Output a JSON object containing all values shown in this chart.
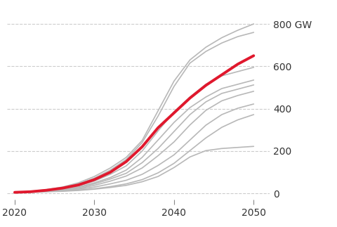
{
  "years": [
    2020,
    2022,
    2024,
    2026,
    2028,
    2030,
    2032,
    2034,
    2036,
    2038,
    2040,
    2042,
    2044,
    2046,
    2048,
    2050
  ],
  "reference": [
    5,
    8,
    15,
    25,
    40,
    65,
    100,
    150,
    220,
    310,
    380,
    450,
    510,
    560,
    610,
    650
  ],
  "gray_lines": [
    [
      5,
      10,
      18,
      30,
      50,
      80,
      120,
      170,
      250,
      390,
      530,
      630,
      690,
      735,
      770,
      800
    ],
    [
      5,
      9,
      16,
      27,
      45,
      72,
      110,
      160,
      240,
      365,
      505,
      615,
      670,
      710,
      740,
      760
    ],
    [
      5,
      8,
      14,
      22,
      35,
      58,
      90,
      130,
      200,
      295,
      385,
      455,
      515,
      555,
      575,
      595
    ],
    [
      5,
      8,
      13,
      20,
      30,
      50,
      75,
      110,
      170,
      252,
      335,
      405,
      455,
      495,
      515,
      535
    ],
    [
      5,
      7,
      12,
      18,
      28,
      45,
      68,
      95,
      145,
      212,
      292,
      372,
      432,
      472,
      492,
      512
    ],
    [
      5,
      7,
      11,
      16,
      24,
      38,
      58,
      82,
      120,
      178,
      243,
      323,
      392,
      437,
      462,
      482
    ],
    [
      5,
      6,
      10,
      14,
      20,
      30,
      45,
      62,
      90,
      132,
      182,
      252,
      322,
      372,
      402,
      422
    ],
    [
      5,
      5,
      8,
      10,
      14,
      20,
      28,
      38,
      55,
      80,
      122,
      172,
      202,
      212,
      217,
      222
    ],
    [
      5,
      6,
      9,
      12,
      16,
      22,
      32,
      45,
      65,
      97,
      142,
      202,
      262,
      312,
      347,
      372
    ]
  ],
  "ref_color": "#e0182d",
  "gray_color": "#b8b8b8",
  "ref_linewidth": 2.8,
  "gray_linewidth": 1.2,
  "background_color": "#ffffff",
  "grid_color": "#cccccc",
  "tick_label_color": "#333333",
  "yticks": [
    0,
    200,
    400,
    600,
    800
  ],
  "xticks": [
    2020,
    2030,
    2040,
    2050
  ],
  "ylim": [
    -30,
    870
  ],
  "xlim": [
    2019,
    2052
  ],
  "top_ylabel": "800 GW",
  "figsize": [
    4.8,
    3.23
  ],
  "dpi": 100
}
